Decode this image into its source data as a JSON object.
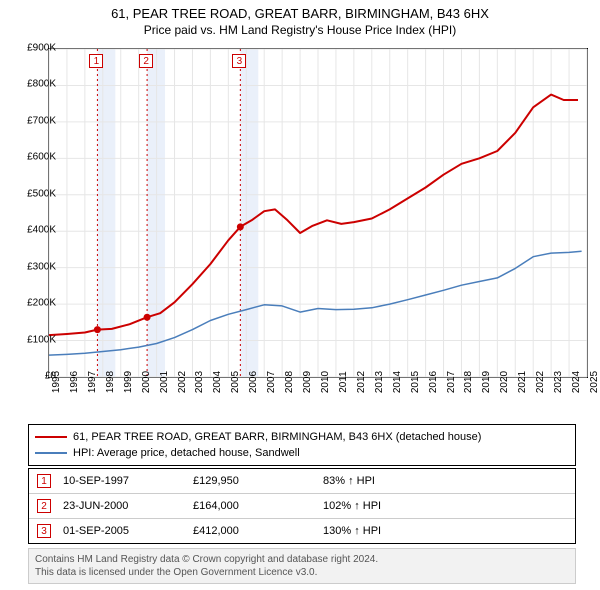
{
  "title": "61, PEAR TREE ROAD, GREAT BARR, BIRMINGHAM, B43 6HX",
  "subtitle": "Price paid vs. HM Land Registry's House Price Index (HPI)",
  "chart": {
    "type": "line",
    "x_min_year": 1995,
    "x_max_year": 2025,
    "y_min": 0,
    "y_max": 900000,
    "y_step": 100000,
    "y_labels": [
      "£0",
      "£100K",
      "£200K",
      "£300K",
      "£400K",
      "£500K",
      "£600K",
      "£700K",
      "£800K",
      "£900K"
    ],
    "x_labels": [
      "1995",
      "1996",
      "1997",
      "1998",
      "1999",
      "2000",
      "2001",
      "2002",
      "2003",
      "2004",
      "2005",
      "2006",
      "2007",
      "2008",
      "2009",
      "2010",
      "2011",
      "2012",
      "2013",
      "2014",
      "2015",
      "2016",
      "2017",
      "2018",
      "2019",
      "2020",
      "2021",
      "2022",
      "2023",
      "2024",
      "2025"
    ],
    "grid_color": "#e6e6e6",
    "background_color": "#ffffff",
    "series": {
      "property": {
        "label": "61, PEAR TREE ROAD, GREAT BARR, BIRMINGHAM, B43 6HX (detached house)",
        "color": "#cc0000",
        "width": 2,
        "dot_radius": 3.5,
        "line": [
          [
            1995.0,
            115000
          ],
          [
            1996.0,
            118000
          ],
          [
            1997.0,
            122000
          ],
          [
            1997.7,
            129950
          ],
          [
            1998.5,
            132000
          ],
          [
            1999.5,
            145000
          ],
          [
            2000.47,
            164000
          ],
          [
            2001.2,
            175000
          ],
          [
            2002.0,
            205000
          ],
          [
            2003.0,
            255000
          ],
          [
            2004.0,
            310000
          ],
          [
            2005.0,
            375000
          ],
          [
            2005.67,
            412000
          ],
          [
            2006.3,
            430000
          ],
          [
            2007.0,
            455000
          ],
          [
            2007.6,
            460000
          ],
          [
            2008.3,
            430000
          ],
          [
            2009.0,
            395000
          ],
          [
            2009.7,
            415000
          ],
          [
            2010.5,
            430000
          ],
          [
            2011.3,
            420000
          ],
          [
            2012.0,
            425000
          ],
          [
            2013.0,
            435000
          ],
          [
            2014.0,
            460000
          ],
          [
            2015.0,
            490000
          ],
          [
            2016.0,
            520000
          ],
          [
            2017.0,
            555000
          ],
          [
            2018.0,
            585000
          ],
          [
            2019.0,
            600000
          ],
          [
            2020.0,
            620000
          ],
          [
            2021.0,
            670000
          ],
          [
            2022.0,
            740000
          ],
          [
            2023.0,
            775000
          ],
          [
            2023.7,
            760000
          ],
          [
            2024.5,
            760000
          ]
        ],
        "dots": [
          [
            1997.7,
            129950
          ],
          [
            2000.47,
            164000
          ],
          [
            2005.67,
            412000
          ]
        ]
      },
      "hpi": {
        "label": "HPI: Average price, detached house, Sandwell",
        "color": "#4a7ebb",
        "width": 1.5,
        "line": [
          [
            1995.0,
            60000
          ],
          [
            1996.0,
            62000
          ],
          [
            1997.0,
            65000
          ],
          [
            1998.0,
            70000
          ],
          [
            1999.0,
            75000
          ],
          [
            2000.0,
            82000
          ],
          [
            2001.0,
            92000
          ],
          [
            2002.0,
            108000
          ],
          [
            2003.0,
            130000
          ],
          [
            2004.0,
            155000
          ],
          [
            2005.0,
            172000
          ],
          [
            2006.0,
            185000
          ],
          [
            2007.0,
            198000
          ],
          [
            2008.0,
            195000
          ],
          [
            2009.0,
            178000
          ],
          [
            2010.0,
            188000
          ],
          [
            2011.0,
            185000
          ],
          [
            2012.0,
            186000
          ],
          [
            2013.0,
            190000
          ],
          [
            2014.0,
            200000
          ],
          [
            2015.0,
            212000
          ],
          [
            2016.0,
            225000
          ],
          [
            2017.0,
            238000
          ],
          [
            2018.0,
            252000
          ],
          [
            2019.0,
            262000
          ],
          [
            2020.0,
            272000
          ],
          [
            2021.0,
            298000
          ],
          [
            2022.0,
            330000
          ],
          [
            2023.0,
            340000
          ],
          [
            2024.0,
            342000
          ],
          [
            2024.7,
            345000
          ]
        ]
      }
    },
    "sale_markers": [
      {
        "num": "1",
        "year": 1997.7,
        "color": "#cc0000"
      },
      {
        "num": "2",
        "year": 2000.47,
        "color": "#cc0000"
      },
      {
        "num": "3",
        "year": 2005.67,
        "color": "#cc0000"
      }
    ],
    "band_color": "#eaf0fa"
  },
  "legend": [
    {
      "color": "#cc0000",
      "label": "61, PEAR TREE ROAD, GREAT BARR, BIRMINGHAM, B43 6HX (detached house)"
    },
    {
      "color": "#4a7ebb",
      "label": "HPI: Average price, detached house, Sandwell"
    }
  ],
  "sales": [
    {
      "num": "1",
      "color": "#cc0000",
      "date": "10-SEP-1997",
      "price": "£129,950",
      "pct": "83% ↑ HPI"
    },
    {
      "num": "2",
      "color": "#cc0000",
      "date": "23-JUN-2000",
      "price": "£164,000",
      "pct": "102% ↑ HPI"
    },
    {
      "num": "3",
      "color": "#cc0000",
      "date": "01-SEP-2005",
      "price": "£412,000",
      "pct": "130% ↑ HPI"
    }
  ],
  "footnote": {
    "line1": "Contains HM Land Registry data © Crown copyright and database right 2024.",
    "line2": "This data is licensed under the Open Government Licence v3.0."
  }
}
